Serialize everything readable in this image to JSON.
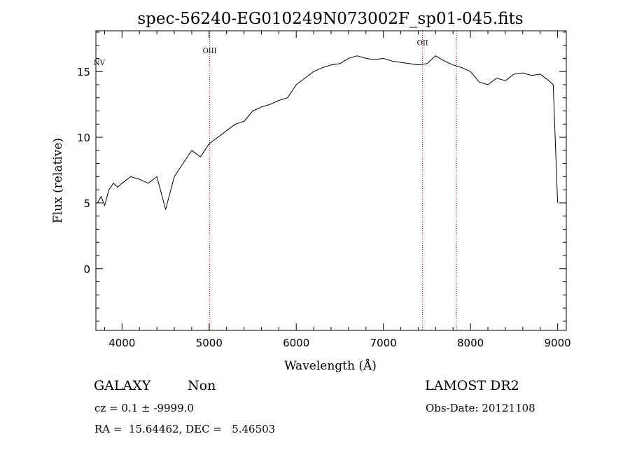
{
  "chart_data": {
    "type": "line",
    "title": "spec-56240-EG010249N073002F_sp01-045.fits",
    "xlabel": "Wavelength (Å)",
    "ylabel": "Flux (relative)",
    "xlim": [
      3700,
      9100
    ],
    "ylim": [
      -4.7,
      18.1
    ],
    "xticks": [
      4000,
      5000,
      6000,
      7000,
      8000,
      9000
    ],
    "yticks": [
      0,
      5,
      10,
      15
    ],
    "grid": false,
    "line_color": "#000000",
    "annotations": [
      {
        "label": "NV",
        "x": 3739,
        "y": 15.5,
        "line": false
      },
      {
        "label": "OIII",
        "x": 5007,
        "y": 16.4,
        "line": true,
        "line_color": "#cc0000"
      },
      {
        "label": "OII",
        "x": 7450,
        "y": 17.0,
        "line": true,
        "line_color": "#cc0000"
      },
      {
        "label": "",
        "x": 7840,
        "y": 17.0,
        "line": true,
        "line_color": "#cc0000"
      }
    ],
    "series": [
      {
        "x": [
          3720,
          3760,
          3800,
          3850,
          3900,
          3950,
          4000,
          4100,
          4200,
          4300,
          4400,
          4500,
          4600,
          4700,
          4800,
          4900,
          5000,
          5100,
          5200,
          5300,
          5400,
          5500,
          5600,
          5700,
          5800,
          5900,
          6000,
          6100,
          6200,
          6300,
          6400,
          6500,
          6600,
          6700,
          6800,
          6900,
          7000,
          7100,
          7200,
          7300,
          7400,
          7500,
          7600,
          7700,
          7800,
          7900,
          8000,
          8100,
          8200,
          8300,
          8400,
          8500,
          8600,
          8700,
          8800,
          8900,
          8950,
          9000
        ],
        "y": [
          5.0,
          5.5,
          4.8,
          6.0,
          6.5,
          6.2,
          6.5,
          7.0,
          6.8,
          6.5,
          7.0,
          4.5,
          7.0,
          8.0,
          9.0,
          8.5,
          9.5,
          10.0,
          10.5,
          11.0,
          11.2,
          12.0,
          12.3,
          12.5,
          12.8,
          13.0,
          14.0,
          14.5,
          15.0,
          15.3,
          15.5,
          15.6,
          16.0,
          16.2,
          16.0,
          15.9,
          16.0,
          15.8,
          15.7,
          15.6,
          15.5,
          15.6,
          16.2,
          15.8,
          15.5,
          15.3,
          15.0,
          14.2,
          14.0,
          14.5,
          14.3,
          14.8,
          14.9,
          14.7,
          14.8,
          14.3,
          14.0,
          5.0
        ]
      }
    ]
  },
  "footer": {
    "object_class": "GALAXY",
    "subclass": "Non",
    "survey": "LAMOST DR2",
    "cz": "cz = 0.1 ± -9999.0",
    "obs_date": "Obs-Date: 20121108",
    "coords": "RA =  15.64462, DEC =   5.46503"
  }
}
